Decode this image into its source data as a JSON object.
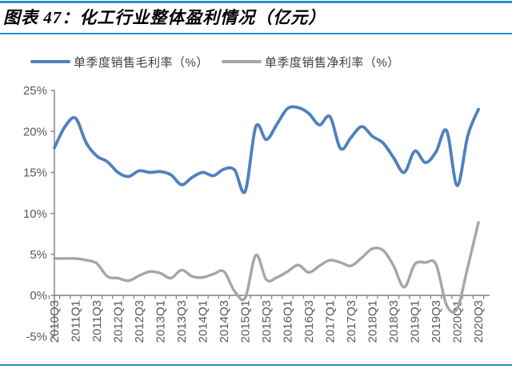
{
  "header": {
    "title": "图表 47：化工行业整体盈利情况（亿元）"
  },
  "legend": {
    "items": [
      {
        "label": "单季度销售毛利率（%）",
        "color": "#4F81BD"
      },
      {
        "label": "单季度销售净利率（%）",
        "color": "#A6A6A6"
      }
    ]
  },
  "chart_data": {
    "type": "line",
    "title": "图表 47：化工行业整体盈利情况（亿元）",
    "smooth": true,
    "grid": false,
    "legend_position": "top",
    "x": [
      "2010Q3",
      "2010Q4",
      "2011Q1",
      "2011Q2",
      "2011Q3",
      "2011Q4",
      "2012Q1",
      "2012Q2",
      "2012Q3",
      "2012Q4",
      "2013Q1",
      "2013Q2",
      "2013Q3",
      "2013Q4",
      "2014Q1",
      "2014Q2",
      "2014Q3",
      "2014Q4",
      "2015Q1",
      "2015Q2",
      "2015Q3",
      "2015Q4",
      "2016Q1",
      "2016Q2",
      "2016Q3",
      "2016Q4",
      "2017Q1",
      "2017Q2",
      "2017Q3",
      "2017Q4",
      "2018Q1",
      "2018Q2",
      "2018Q3",
      "2018Q4",
      "2019Q1",
      "2019Q2",
      "2019Q3",
      "2019Q4",
      "2020Q1",
      "2020Q2",
      "2020Q3"
    ],
    "x_tick_labels": [
      "2010Q3",
      "2011Q1",
      "2011Q3",
      "2012Q1",
      "2012Q3",
      "2013Q1",
      "2013Q3",
      "2014Q1",
      "2014Q3",
      "2015Q1",
      "2015Q3",
      "2016Q1",
      "2016Q3",
      "2017Q1",
      "2017Q3",
      "2018Q1",
      "2018Q3",
      "2019Q1",
      "2019Q3",
      "2020Q1",
      "2020Q3"
    ],
    "series": [
      {
        "name": "单季度销售毛利率（%）",
        "color": "#4F81BD",
        "values": [
          18.0,
          20.6,
          21.6,
          18.6,
          17.0,
          16.3,
          15.0,
          14.5,
          15.2,
          15.0,
          15.1,
          14.7,
          13.5,
          14.4,
          15.0,
          14.6,
          15.4,
          15.3,
          12.7,
          20.6,
          19.0,
          20.9,
          22.8,
          22.9,
          22.2,
          20.8,
          21.8,
          17.9,
          19.3,
          20.6,
          19.4,
          18.6,
          16.8,
          15.0,
          17.6,
          16.2,
          17.5,
          20.1,
          13.4,
          19.5,
          22.7
        ]
      },
      {
        "name": "单季度销售净利率（%）",
        "color": "#A6A6A6",
        "values": [
          4.5,
          4.5,
          4.5,
          4.3,
          3.9,
          2.3,
          2.1,
          1.8,
          2.4,
          2.9,
          2.7,
          2.1,
          3.1,
          2.3,
          2.2,
          2.6,
          2.9,
          0.5,
          -0.3,
          4.9,
          1.9,
          2.2,
          2.9,
          3.7,
          2.8,
          3.6,
          4.3,
          4.0,
          3.6,
          4.6,
          5.7,
          5.5,
          3.6,
          1.0,
          3.8,
          4.0,
          3.8,
          -1.2,
          -1.6,
          3.5,
          8.9
        ]
      }
    ],
    "ylim": [
      -5,
      25
    ],
    "ytick_step": 5,
    "ytick_labels": [
      "-5%",
      "0%",
      "5%",
      "10%",
      "15%",
      "20%",
      "25%"
    ],
    "xlabel": "",
    "ylabel": ""
  },
  "colors": {
    "rule_blue": "#2A8CCE",
    "axis": "#808080",
    "tick_label": "#595959"
  }
}
